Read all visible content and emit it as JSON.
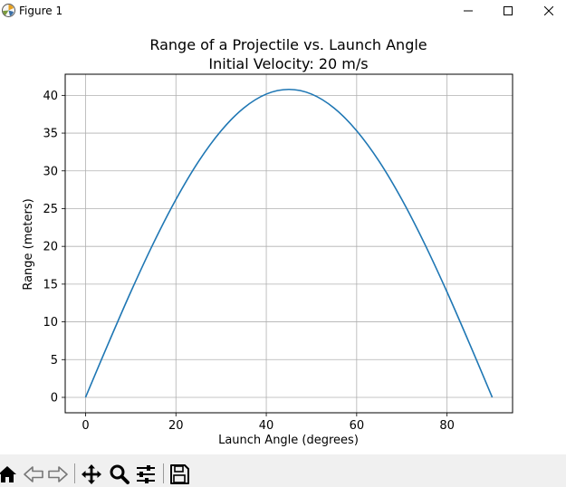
{
  "window": {
    "title": "Figure 1",
    "buttons": {
      "minimize": "minimize-icon",
      "maximize": "maximize-icon",
      "close": "close-icon"
    }
  },
  "chart_data": {
    "type": "line",
    "title": "Range of a Projectile vs. Launch Angle",
    "subtitle": "Initial Velocity: 20 m/s",
    "xlabel": "Launch Angle (degrees)",
    "ylabel": "Range (meters)",
    "xlim": [
      -4.5,
      94.5
    ],
    "ylim": [
      -2.04,
      42.8
    ],
    "xticks": [
      0,
      20,
      40,
      60,
      80
    ],
    "yticks": [
      0,
      5,
      10,
      15,
      20,
      25,
      30,
      35,
      40
    ],
    "grid": true,
    "line_color": "#1f77b4",
    "series": [
      {
        "x": [
          0,
          5,
          10,
          15,
          20,
          25,
          30,
          35,
          40,
          45,
          50,
          55,
          60,
          65,
          70,
          75,
          80,
          85,
          90
        ],
        "y": [
          0,
          7.08,
          13.95,
          20.39,
          26.21,
          31.24,
          35.31,
          38.32,
          40.17,
          40.79,
          40.17,
          38.32,
          35.31,
          31.24,
          26.21,
          20.39,
          13.95,
          7.08,
          0
        ]
      }
    ]
  },
  "toolbar": {
    "tools": [
      "home-icon",
      "back-icon",
      "forward-icon",
      "pan-icon",
      "zoom-icon",
      "configure-subplots-icon",
      "save-icon"
    ]
  }
}
